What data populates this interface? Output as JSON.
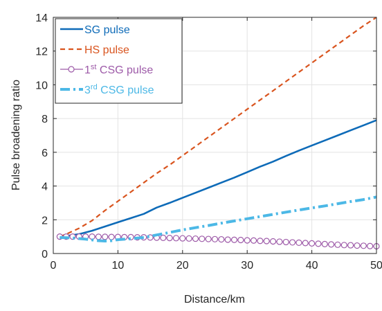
{
  "chart_data": {
    "type": "line",
    "xlabel": "Distance/km",
    "ylabel": "Pulse broadening ratio",
    "xlim": [
      0,
      50
    ],
    "ylim": [
      0,
      14
    ],
    "xticks": [
      "0",
      "10",
      "20",
      "30",
      "40",
      "50"
    ],
    "yticks": [
      "0",
      "2",
      "4",
      "6",
      "8",
      "10",
      "12",
      "14"
    ],
    "grid": true,
    "legend_position": "top-left",
    "series": [
      {
        "name": "SG pulse",
        "legend_parts": {
          "pre": "",
          "sup": "",
          "post": "SG pulse"
        },
        "color": "#0e6bb8",
        "line_style": "solid",
        "marker": "none",
        "x": [
          1,
          2,
          4,
          6,
          8,
          10,
          12,
          14,
          16,
          18,
          20,
          22,
          24,
          26,
          28,
          30,
          32,
          34,
          36,
          38,
          40,
          42,
          44,
          46,
          48,
          50
        ],
        "y": [
          1.0,
          1.04,
          1.15,
          1.35,
          1.6,
          1.85,
          2.1,
          2.35,
          2.72,
          3.0,
          3.3,
          3.6,
          3.9,
          4.2,
          4.5,
          4.82,
          5.15,
          5.45,
          5.78,
          6.1,
          6.4,
          6.7,
          7.0,
          7.3,
          7.6,
          7.9
        ]
      },
      {
        "name": "HS pulse",
        "legend_parts": {
          "pre": "",
          "sup": "",
          "post": "HS pulse"
        },
        "color": "#d9541e",
        "line_style": "dashed",
        "marker": "none",
        "x": [
          1,
          2,
          4,
          6,
          8,
          10,
          12,
          14,
          16,
          18,
          20,
          22,
          24,
          26,
          28,
          30,
          32,
          34,
          36,
          38,
          40,
          42,
          44,
          46,
          48,
          50
        ],
        "y": [
          1.0,
          1.15,
          1.5,
          1.95,
          2.55,
          3.1,
          3.65,
          4.2,
          4.75,
          5.25,
          5.8,
          6.35,
          6.9,
          7.45,
          8.0,
          8.55,
          9.1,
          9.65,
          10.2,
          10.75,
          11.3,
          11.85,
          12.4,
          12.95,
          13.5,
          14.0
        ]
      },
      {
        "name": "1st CSG pulse",
        "legend_parts": {
          "pre": "1",
          "sup": "st",
          "post": " CSG pulse"
        },
        "color": "#9d5aa8",
        "line_style": "solid",
        "marker": "circle",
        "x": [
          1,
          2,
          3,
          4,
          5,
          6,
          7,
          8,
          9,
          10,
          11,
          12,
          13,
          14,
          15,
          16,
          17,
          18,
          19,
          20,
          21,
          22,
          23,
          24,
          25,
          26,
          27,
          28,
          29,
          30,
          31,
          32,
          33,
          34,
          35,
          36,
          37,
          38,
          39,
          40,
          41,
          42,
          43,
          44,
          45,
          46,
          47,
          48,
          49,
          50
        ],
        "y": [
          1.0,
          1.0,
          1.0,
          1.0,
          1.0,
          1.0,
          0.99,
          0.99,
          0.98,
          0.98,
          0.97,
          0.97,
          0.96,
          0.96,
          0.95,
          0.94,
          0.93,
          0.92,
          0.91,
          0.9,
          0.89,
          0.88,
          0.87,
          0.86,
          0.85,
          0.84,
          0.82,
          0.81,
          0.8,
          0.78,
          0.77,
          0.75,
          0.74,
          0.72,
          0.7,
          0.68,
          0.66,
          0.64,
          0.62,
          0.6,
          0.58,
          0.56,
          0.54,
          0.52,
          0.5,
          0.49,
          0.47,
          0.46,
          0.44,
          0.43
        ]
      },
      {
        "name": "3rd CSG pulse",
        "legend_parts": {
          "pre": "3",
          "sup": "rd",
          "post": " CSG pulse"
        },
        "color": "#4cb8e6",
        "line_style": "dashdot",
        "marker": "none",
        "x": [
          1,
          3,
          5,
          7,
          8,
          9,
          10,
          12,
          14,
          16,
          18,
          20,
          22,
          24,
          26,
          28,
          30,
          32,
          34,
          36,
          38,
          40,
          42,
          44,
          46,
          48,
          50
        ],
        "y": [
          0.95,
          0.92,
          0.85,
          0.76,
          0.74,
          0.76,
          0.82,
          0.88,
          0.95,
          1.1,
          1.25,
          1.4,
          1.53,
          1.66,
          1.8,
          1.93,
          2.06,
          2.19,
          2.32,
          2.45,
          2.58,
          2.7,
          2.82,
          2.95,
          3.08,
          3.2,
          3.35
        ]
      }
    ]
  }
}
